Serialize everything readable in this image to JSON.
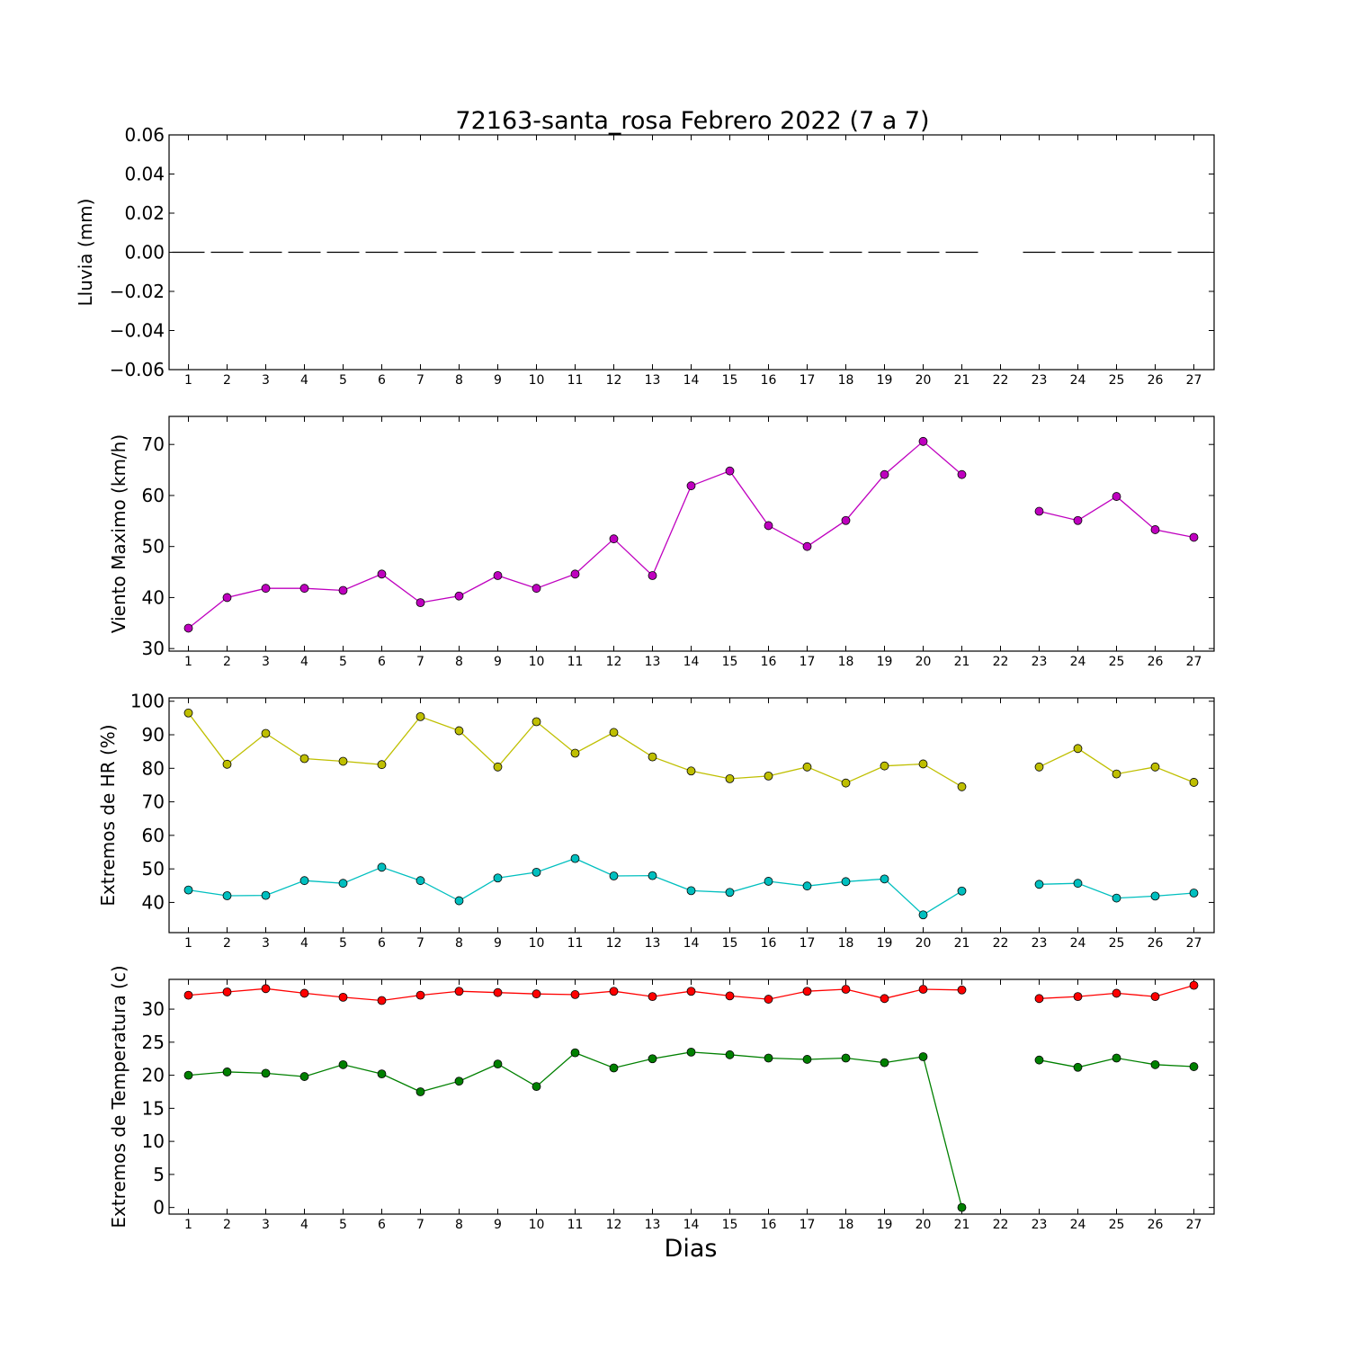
{
  "chart_data": {
    "title": "72163-santa_rosa Febrero 2022  (7 a 7)",
    "xlabel": "Dias",
    "x_ticks": [
      "1",
      "2",
      "3",
      "4",
      "5",
      "6",
      "7",
      "8",
      "9",
      "10",
      "11",
      "12",
      "13",
      "14",
      "15",
      "16",
      "17",
      "18",
      "19",
      "20",
      "21",
      "22",
      "23",
      "24",
      "25",
      "26",
      "27"
    ],
    "panels": [
      {
        "id": "lluvia",
        "type": "bar",
        "ylabel": "Lluvia (mm)",
        "ylim": [
          -0.06,
          0.06
        ],
        "yticks": [
          0.06,
          0.04,
          0.02,
          0.0,
          -0.02,
          -0.04,
          -0.06
        ],
        "ytick_labels": [
          "0.06",
          "0.04",
          "0.02",
          "0.00",
          "−0.02",
          "−0.04",
          "−0.06"
        ],
        "series": [
          {
            "color": "#000000",
            "values": [
              0,
              0,
              0,
              0,
              0,
              0,
              0,
              0,
              0,
              0,
              0,
              0,
              0,
              0,
              0,
              0,
              0,
              0,
              0,
              0,
              0,
              null,
              0,
              0,
              0,
              0,
              0
            ]
          }
        ]
      },
      {
        "id": "viento",
        "type": "line",
        "ylabel": "Viento Maximo (km/h)",
        "ylim": [
          29.5,
          75.5
        ],
        "yticks": [
          30,
          40,
          50,
          60,
          70
        ],
        "ytick_labels": [
          "30",
          "40",
          "50",
          "60",
          "70"
        ],
        "series": [
          {
            "color": "#bf00bf",
            "values": [
              34.0,
              40.0,
              41.8,
              41.8,
              41.4,
              44.6,
              39.0,
              40.3,
              44.3,
              41.8,
              44.6,
              51.5,
              44.3,
              61.9,
              64.8,
              54.1,
              50.0,
              55.1,
              64.1,
              70.6,
              64.1,
              null,
              56.9,
              55.1,
              59.8,
              53.3,
              51.8
            ]
          }
        ]
      },
      {
        "id": "hr",
        "type": "line",
        "ylabel": "Extremos de HR (%)",
        "ylim": [
          31,
          101
        ],
        "yticks": [
          40,
          50,
          60,
          70,
          80,
          90,
          100
        ],
        "ytick_labels": [
          "40",
          "50",
          "60",
          "70",
          "80",
          "90",
          "100"
        ],
        "series": [
          {
            "color": "#bfbf00",
            "values": [
              96.5,
              81.2,
              90.4,
              82.9,
              82.1,
              81.1,
              95.4,
              91.2,
              80.4,
              93.9,
              84.5,
              90.7,
              83.4,
              79.2,
              76.9,
              77.7,
              80.4,
              75.6,
              80.7,
              81.3,
              74.5,
              null,
              80.4,
              85.9,
              78.3,
              80.4,
              75.8
            ]
          },
          {
            "color": "#00bfbf",
            "values": [
              43.7,
              42.0,
              42.1,
              46.5,
              45.7,
              50.5,
              46.5,
              40.5,
              47.3,
              49.0,
              53.1,
              47.9,
              48.0,
              43.5,
              43.0,
              46.3,
              44.9,
              46.2,
              47.0,
              36.3,
              43.4,
              null,
              45.4,
              45.7,
              41.3,
              41.9,
              42.8
            ]
          }
        ]
      },
      {
        "id": "temp",
        "type": "line",
        "ylabel": "Extremos de Temperatura (c)",
        "ylim": [
          -1,
          34.5
        ],
        "yticks": [
          0,
          5,
          10,
          15,
          20,
          25,
          30
        ],
        "ytick_labels": [
          "0",
          "5",
          "10",
          "15",
          "20",
          "25",
          "30"
        ],
        "series": [
          {
            "color": "#ff0000",
            "values": [
              32.1,
              32.6,
              33.1,
              32.4,
              31.8,
              31.3,
              32.1,
              32.7,
              32.5,
              32.3,
              32.2,
              32.7,
              31.9,
              32.7,
              32.0,
              31.5,
              32.7,
              33.0,
              31.6,
              33.0,
              32.9,
              null,
              31.6,
              31.9,
              32.4,
              31.9,
              33.6
            ]
          },
          {
            "color": "#008000",
            "values": [
              20.0,
              20.5,
              20.3,
              19.8,
              21.6,
              20.2,
              17.5,
              19.1,
              21.7,
              18.3,
              23.4,
              21.1,
              22.5,
              23.5,
              23.1,
              22.6,
              22.4,
              22.6,
              21.9,
              22.8,
              0.0,
              null,
              22.3,
              21.2,
              22.6,
              21.6,
              21.3
            ]
          }
        ]
      }
    ]
  }
}
